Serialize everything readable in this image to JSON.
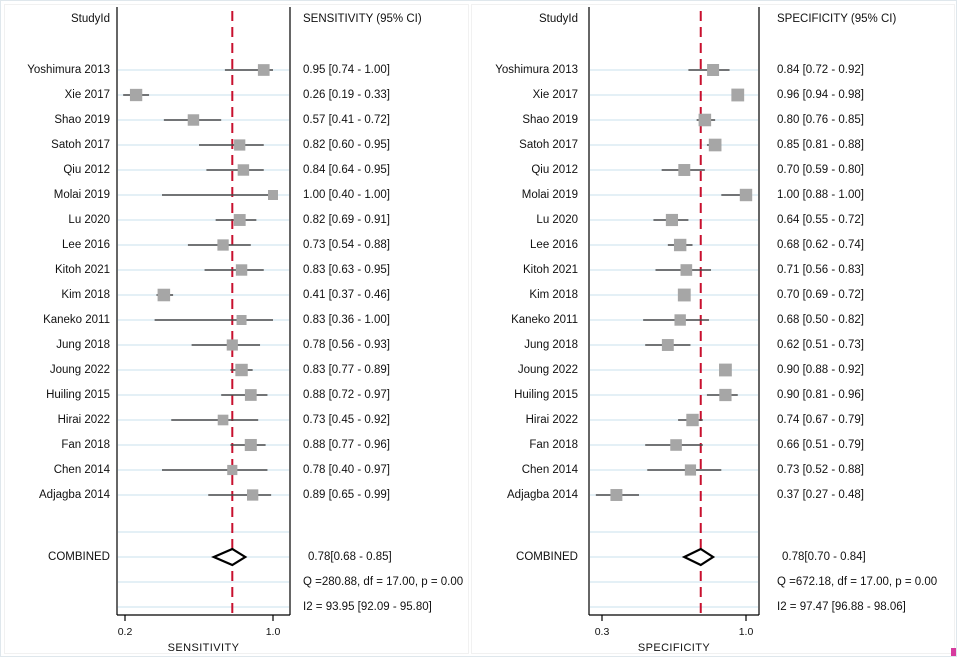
{
  "colors": {
    "marker": "#a6a6a6",
    "ci_line": "#4a4a4a",
    "guideline": "#dcebf3",
    "ref_line": "#c8102e",
    "plot_border": "#000000",
    "text": "#111111",
    "corner_artifact": "#d63b9e"
  },
  "chart_data": {
    "type": "forest",
    "panels": [
      {
        "study_header": "StudyId",
        "title": "SENSITIVITY (95% CI)",
        "axis": {
          "title": "SENSITIVITY",
          "ticks": [
            {
              "label": "0.2",
              "value": 0.2
            },
            {
              "label": "1.0",
              "value": 1.0
            }
          ]
        },
        "ref_line_value": 0.78,
        "studies": [
          {
            "id": "Yoshimura 2013",
            "est": 0.95,
            "lo": 0.74,
            "hi": 1.0,
            "text": "0.95 [0.74 - 1.00]"
          },
          {
            "id": "Xie 2017",
            "est": 0.26,
            "lo": 0.19,
            "hi": 0.33,
            "text": "0.26 [0.19 - 0.33]"
          },
          {
            "id": "Shao 2019",
            "est": 0.57,
            "lo": 0.41,
            "hi": 0.72,
            "text": "0.57 [0.41 - 0.72]"
          },
          {
            "id": "Satoh 2017",
            "est": 0.82,
            "lo": 0.6,
            "hi": 0.95,
            "text": "0.82 [0.60 - 0.95]"
          },
          {
            "id": "Qiu 2012",
            "est": 0.84,
            "lo": 0.64,
            "hi": 0.95,
            "text": "0.84 [0.64 - 0.95]"
          },
          {
            "id": "Molai 2019",
            "est": 1.0,
            "lo": 0.4,
            "hi": 1.0,
            "text": "1.00 [0.40 - 1.00]"
          },
          {
            "id": "Lu 2020",
            "est": 0.82,
            "lo": 0.69,
            "hi": 0.91,
            "text": "0.82 [0.69 - 0.91]"
          },
          {
            "id": "Lee 2016",
            "est": 0.73,
            "lo": 0.54,
            "hi": 0.88,
            "text": "0.73 [0.54 - 0.88]"
          },
          {
            "id": "Kitoh 2021",
            "est": 0.83,
            "lo": 0.63,
            "hi": 0.95,
            "text": "0.83 [0.63 - 0.95]"
          },
          {
            "id": "Kim 2018",
            "est": 0.41,
            "lo": 0.37,
            "hi": 0.46,
            "text": "0.41 [0.37 - 0.46]"
          },
          {
            "id": "Kaneko 2011",
            "est": 0.83,
            "lo": 0.36,
            "hi": 1.0,
            "text": "0.83 [0.36 - 1.00]"
          },
          {
            "id": "Jung 2018",
            "est": 0.78,
            "lo": 0.56,
            "hi": 0.93,
            "text": "0.78 [0.56 - 0.93]"
          },
          {
            "id": "Joung 2022",
            "est": 0.83,
            "lo": 0.77,
            "hi": 0.89,
            "text": "0.83 [0.77 - 0.89]"
          },
          {
            "id": "Huiling 2015",
            "est": 0.88,
            "lo": 0.72,
            "hi": 0.97,
            "text": "0.88 [0.72 - 0.97]"
          },
          {
            "id": "Hirai 2022",
            "est": 0.73,
            "lo": 0.45,
            "hi": 0.92,
            "text": "0.73 [0.45 - 0.92]"
          },
          {
            "id": "Fan 2018",
            "est": 0.88,
            "lo": 0.77,
            "hi": 0.96,
            "text": "0.88 [0.77 - 0.96]"
          },
          {
            "id": "Chen 2014",
            "est": 0.78,
            "lo": 0.4,
            "hi": 0.97,
            "text": "0.78 [0.40 - 0.97]"
          },
          {
            "id": "Adjagba 2014",
            "est": 0.89,
            "lo": 0.65,
            "hi": 0.99,
            "text": "0.89 [0.65 - 0.99]"
          }
        ],
        "combined": {
          "label": "COMBINED",
          "est": 0.78,
          "lo": 0.68,
          "hi": 0.85,
          "text": "0.78[0.68 - 0.85]"
        },
        "heterogeneity": {
          "q_text": "Q =280.88, df = 17.00, p =  0.00",
          "i2_text": "I2 = 93.95 [92.09 - 95.80]"
        }
      },
      {
        "study_header": "StudyId",
        "title": "SPECIFICITY (95% CI)",
        "axis": {
          "title": "SPECIFICITY",
          "ticks": [
            {
              "label": "0.3",
              "value": 0.3
            },
            {
              "label": "1.0",
              "value": 1.0
            }
          ]
        },
        "ref_line_value": 0.78,
        "studies": [
          {
            "id": "Yoshimura 2013",
            "est": 0.84,
            "lo": 0.72,
            "hi": 0.92,
            "text": "0.84 [0.72 - 0.92]"
          },
          {
            "id": "Xie 2017",
            "est": 0.96,
            "lo": 0.94,
            "hi": 0.98,
            "text": "0.96 [0.94 - 0.98]"
          },
          {
            "id": "Shao 2019",
            "est": 0.8,
            "lo": 0.76,
            "hi": 0.85,
            "text": "0.80 [0.76 - 0.85]"
          },
          {
            "id": "Satoh 2017",
            "est": 0.85,
            "lo": 0.81,
            "hi": 0.88,
            "text": "0.85 [0.81 - 0.88]"
          },
          {
            "id": "Qiu 2012",
            "est": 0.7,
            "lo": 0.59,
            "hi": 0.8,
            "text": "0.70 [0.59 - 0.80]"
          },
          {
            "id": "Molai 2019",
            "est": 1.0,
            "lo": 0.88,
            "hi": 1.0,
            "text": "1.00 [0.88 - 1.00]"
          },
          {
            "id": "Lu 2020",
            "est": 0.64,
            "lo": 0.55,
            "hi": 0.72,
            "text": "0.64 [0.55 - 0.72]"
          },
          {
            "id": "Lee 2016",
            "est": 0.68,
            "lo": 0.62,
            "hi": 0.74,
            "text": "0.68 [0.62 - 0.74]"
          },
          {
            "id": "Kitoh 2021",
            "est": 0.71,
            "lo": 0.56,
            "hi": 0.83,
            "text": "0.71 [0.56 - 0.83]"
          },
          {
            "id": "Kim 2018",
            "est": 0.7,
            "lo": 0.69,
            "hi": 0.72,
            "text": "0.70 [0.69 - 0.72]"
          },
          {
            "id": "Kaneko 2011",
            "est": 0.68,
            "lo": 0.5,
            "hi": 0.82,
            "text": "0.68 [0.50 - 0.82]"
          },
          {
            "id": "Jung 2018",
            "est": 0.62,
            "lo": 0.51,
            "hi": 0.73,
            "text": "0.62 [0.51 - 0.73]"
          },
          {
            "id": "Joung 2022",
            "est": 0.9,
            "lo": 0.88,
            "hi": 0.92,
            "text": "0.90 [0.88 - 0.92]"
          },
          {
            "id": "Huiling 2015",
            "est": 0.9,
            "lo": 0.81,
            "hi": 0.96,
            "text": "0.90 [0.81 - 0.96]"
          },
          {
            "id": "Hirai 2022",
            "est": 0.74,
            "lo": 0.67,
            "hi": 0.79,
            "text": "0.74 [0.67 - 0.79]"
          },
          {
            "id": "Fan 2018",
            "est": 0.66,
            "lo": 0.51,
            "hi": 0.79,
            "text": "0.66 [0.51 - 0.79]"
          },
          {
            "id": "Chen 2014",
            "est": 0.73,
            "lo": 0.52,
            "hi": 0.88,
            "text": "0.73 [0.52 - 0.88]"
          },
          {
            "id": "Adjagba 2014",
            "est": 0.37,
            "lo": 0.27,
            "hi": 0.48,
            "text": "0.37 [0.27 - 0.48]"
          }
        ],
        "combined": {
          "label": "COMBINED",
          "est": 0.78,
          "lo": 0.7,
          "hi": 0.84,
          "text": "0.78[0.70 - 0.84]"
        },
        "heterogeneity": {
          "q_text": "Q =672.18, df = 17.00, p =  0.00",
          "i2_text": "I2 = 97.47 [96.88 - 98.06]"
        }
      }
    ]
  }
}
